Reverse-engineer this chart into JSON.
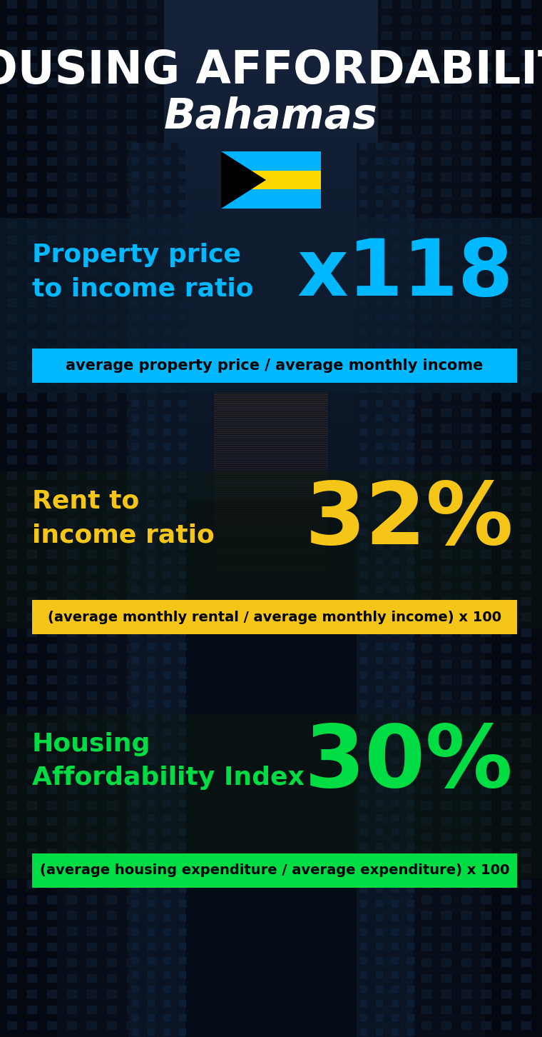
{
  "title_line1": "HOUSING AFFORDABILITY",
  "title_line2": "Bahamas",
  "bg_color": "#050d18",
  "section1_label": "Property price\nto income ratio",
  "section1_value": "x118",
  "section1_label_color": "#00b8ff",
  "section1_value_color": "#00b8ff",
  "section1_sublabel": "average property price / average monthly income",
  "section1_sublabel_bg": "#00b8ff",
  "section2_label": "Rent to\nincome ratio",
  "section2_value": "32%",
  "section2_label_color": "#f5c518",
  "section2_value_color": "#f5c518",
  "section2_sublabel": "(average monthly rental / average monthly income) x 100",
  "section2_sublabel_bg": "#f5c518",
  "section3_label": "Housing\nAffordability Index",
  "section3_value": "30%",
  "section3_label_color": "#00dd44",
  "section3_value_color": "#00dd44",
  "section3_sublabel": "(average housing expenditure / average expenditure) x 100",
  "section3_sublabel_bg": "#00dd44",
  "flag_colors": [
    "#00b2ff",
    "#000000",
    "#ffd700"
  ],
  "white": "#ffffff",
  "black": "#000000"
}
